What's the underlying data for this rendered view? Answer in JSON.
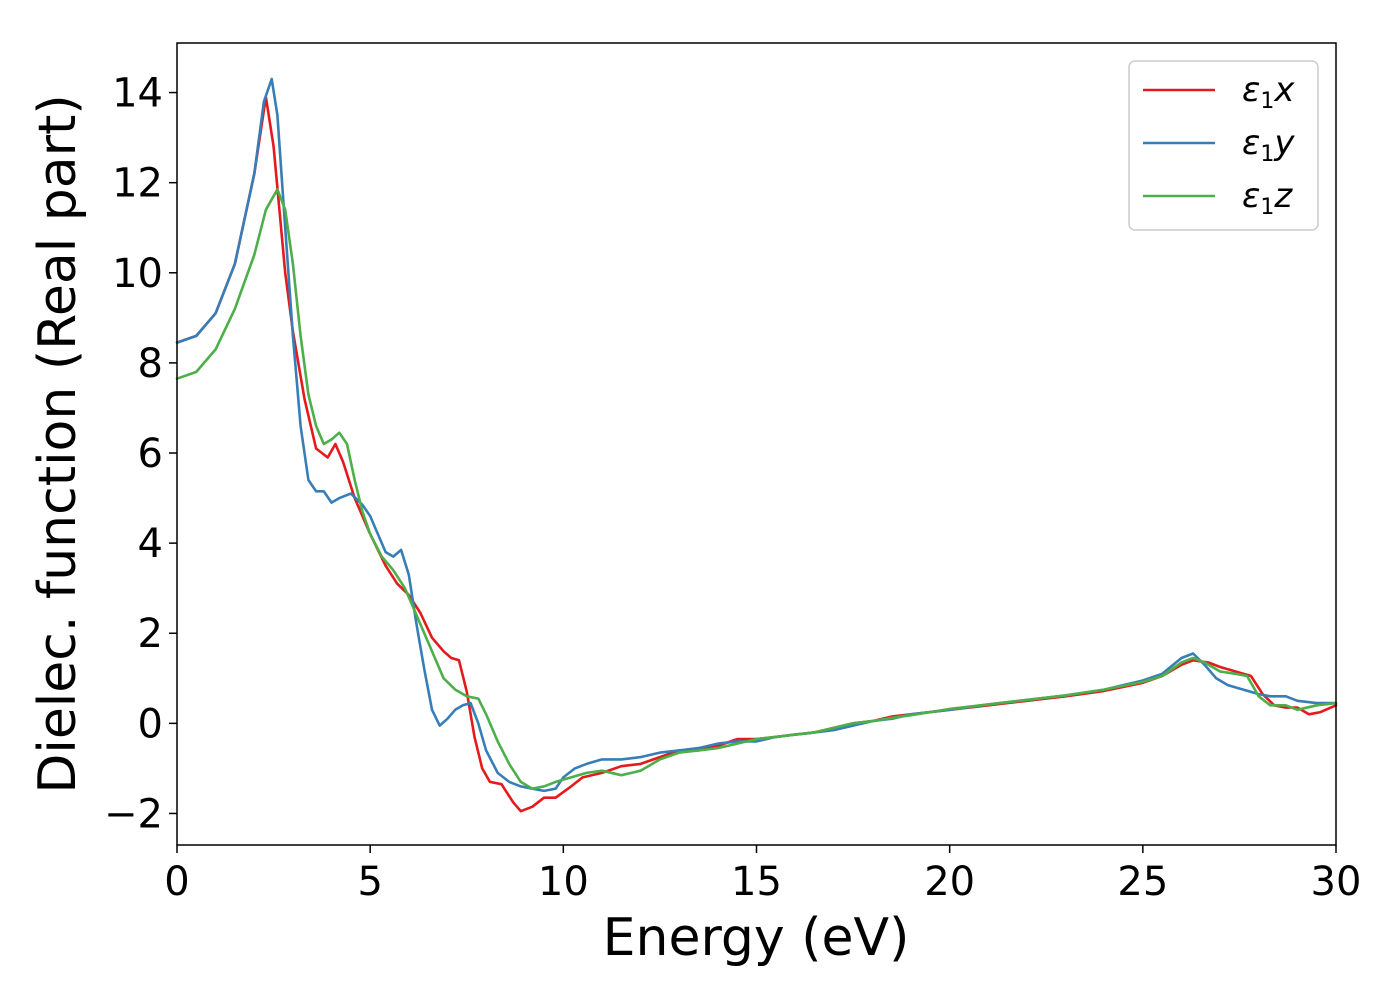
{
  "chart_data": {
    "type": "line",
    "title": "",
    "xlabel": "Energy (eV)",
    "ylabel": "Dielec. function (Real part)",
    "xlim": [
      0,
      30
    ],
    "ylim": [
      -2.7,
      15.1
    ],
    "xticks": [
      0,
      5,
      10,
      15,
      20,
      25,
      30
    ],
    "xtick_labels": [
      "0",
      "5",
      "10",
      "15",
      "20",
      "25",
      "30"
    ],
    "yticks": [
      -2,
      0,
      2,
      4,
      6,
      8,
      10,
      12,
      14
    ],
    "ytick_labels": [
      "−2",
      "0",
      "2",
      "4",
      "6",
      "8",
      "10",
      "12",
      "14"
    ],
    "grid": false,
    "legend_position": "top-right",
    "series": [
      {
        "name": "ε1x",
        "legend_main": "ε",
        "legend_sub": "1",
        "legend_var": "x",
        "color": "#e41a1c",
        "points": [
          [
            0,
            8.45
          ],
          [
            0.5,
            8.6
          ],
          [
            1.0,
            9.1
          ],
          [
            1.5,
            10.2
          ],
          [
            2.0,
            12.2
          ],
          [
            2.3,
            13.9
          ],
          [
            2.5,
            12.8
          ],
          [
            2.8,
            10.0
          ],
          [
            3.0,
            8.7
          ],
          [
            3.3,
            7.2
          ],
          [
            3.6,
            6.1
          ],
          [
            3.9,
            5.9
          ],
          [
            4.1,
            6.2
          ],
          [
            4.3,
            5.8
          ],
          [
            4.6,
            5.0
          ],
          [
            5.0,
            4.2
          ],
          [
            5.4,
            3.5
          ],
          [
            5.7,
            3.1
          ],
          [
            6.0,
            2.85
          ],
          [
            6.3,
            2.45
          ],
          [
            6.6,
            1.9
          ],
          [
            6.9,
            1.6
          ],
          [
            7.1,
            1.45
          ],
          [
            7.3,
            1.4
          ],
          [
            7.5,
            0.7
          ],
          [
            7.7,
            -0.3
          ],
          [
            7.9,
            -1.0
          ],
          [
            8.1,
            -1.3
          ],
          [
            8.4,
            -1.35
          ],
          [
            8.7,
            -1.75
          ],
          [
            8.9,
            -1.95
          ],
          [
            9.2,
            -1.85
          ],
          [
            9.5,
            -1.65
          ],
          [
            9.8,
            -1.65
          ],
          [
            10.2,
            -1.4
          ],
          [
            10.5,
            -1.2
          ],
          [
            11.0,
            -1.1
          ],
          [
            11.5,
            -0.95
          ],
          [
            12.0,
            -0.9
          ],
          [
            12.5,
            -0.75
          ],
          [
            13.0,
            -0.6
          ],
          [
            13.5,
            -0.6
          ],
          [
            14.0,
            -0.5
          ],
          [
            14.5,
            -0.35
          ],
          [
            15.0,
            -0.35
          ],
          [
            15.5,
            -0.3
          ],
          [
            16.0,
            -0.25
          ],
          [
            16.5,
            -0.2
          ],
          [
            17.0,
            -0.1
          ],
          [
            17.5,
            0.0
          ],
          [
            18.0,
            0.05
          ],
          [
            18.5,
            0.15
          ],
          [
            19.0,
            0.2
          ],
          [
            19.5,
            0.25
          ],
          [
            20.0,
            0.3
          ],
          [
            21.0,
            0.4
          ],
          [
            22.0,
            0.5
          ],
          [
            23.0,
            0.6
          ],
          [
            24.0,
            0.72
          ],
          [
            25.0,
            0.9
          ],
          [
            25.5,
            1.05
          ],
          [
            26.0,
            1.3
          ],
          [
            26.3,
            1.4
          ],
          [
            26.7,
            1.35
          ],
          [
            27.0,
            1.25
          ],
          [
            27.4,
            1.15
          ],
          [
            27.8,
            1.05
          ],
          [
            28.1,
            0.65
          ],
          [
            28.4,
            0.4
          ],
          [
            28.7,
            0.35
          ],
          [
            29.0,
            0.35
          ],
          [
            29.3,
            0.2
          ],
          [
            29.6,
            0.25
          ],
          [
            30.0,
            0.4
          ]
        ]
      },
      {
        "name": "ε1y",
        "legend_main": "ε",
        "legend_sub": "1",
        "legend_var": "y",
        "color": "#377eb8",
        "points": [
          [
            0,
            8.45
          ],
          [
            0.5,
            8.6
          ],
          [
            1.0,
            9.1
          ],
          [
            1.5,
            10.2
          ],
          [
            2.0,
            12.2
          ],
          [
            2.25,
            13.8
          ],
          [
            2.45,
            14.3
          ],
          [
            2.6,
            13.5
          ],
          [
            2.8,
            11.0
          ],
          [
            3.0,
            8.6
          ],
          [
            3.2,
            6.6
          ],
          [
            3.4,
            5.4
          ],
          [
            3.6,
            5.15
          ],
          [
            3.8,
            5.15
          ],
          [
            4.0,
            4.9
          ],
          [
            4.2,
            5.0
          ],
          [
            4.5,
            5.1
          ],
          [
            4.8,
            4.85
          ],
          [
            5.0,
            4.6
          ],
          [
            5.2,
            4.2
          ],
          [
            5.4,
            3.8
          ],
          [
            5.6,
            3.7
          ],
          [
            5.8,
            3.85
          ],
          [
            6.0,
            3.3
          ],
          [
            6.2,
            2.2
          ],
          [
            6.4,
            1.2
          ],
          [
            6.6,
            0.3
          ],
          [
            6.8,
            -0.05
          ],
          [
            7.0,
            0.1
          ],
          [
            7.2,
            0.3
          ],
          [
            7.4,
            0.4
          ],
          [
            7.6,
            0.45
          ],
          [
            7.8,
            0.0
          ],
          [
            8.0,
            -0.6
          ],
          [
            8.3,
            -1.1
          ],
          [
            8.6,
            -1.3
          ],
          [
            8.9,
            -1.4
          ],
          [
            9.2,
            -1.45
          ],
          [
            9.5,
            -1.5
          ],
          [
            9.8,
            -1.45
          ],
          [
            10.0,
            -1.2
          ],
          [
            10.3,
            -1.0
          ],
          [
            10.6,
            -0.9
          ],
          [
            11.0,
            -0.8
          ],
          [
            11.5,
            -0.8
          ],
          [
            12.0,
            -0.75
          ],
          [
            12.5,
            -0.65
          ],
          [
            13.0,
            -0.6
          ],
          [
            13.5,
            -0.55
          ],
          [
            14.0,
            -0.45
          ],
          [
            14.5,
            -0.4
          ],
          [
            15.0,
            -0.4
          ],
          [
            15.5,
            -0.3
          ],
          [
            16.0,
            -0.25
          ],
          [
            16.5,
            -0.2
          ],
          [
            17.0,
            -0.15
          ],
          [
            17.5,
            -0.05
          ],
          [
            18.0,
            0.05
          ],
          [
            18.5,
            0.1
          ],
          [
            19.0,
            0.2
          ],
          [
            19.5,
            0.25
          ],
          [
            20.0,
            0.3
          ],
          [
            21.0,
            0.42
          ],
          [
            22.0,
            0.52
          ],
          [
            23.0,
            0.62
          ],
          [
            24.0,
            0.75
          ],
          [
            25.0,
            0.95
          ],
          [
            25.5,
            1.1
          ],
          [
            26.0,
            1.45
          ],
          [
            26.3,
            1.55
          ],
          [
            26.6,
            1.3
          ],
          [
            26.9,
            1.0
          ],
          [
            27.2,
            0.85
          ],
          [
            27.6,
            0.75
          ],
          [
            28.0,
            0.65
          ],
          [
            28.3,
            0.6
          ],
          [
            28.7,
            0.6
          ],
          [
            29.0,
            0.5
          ],
          [
            29.5,
            0.45
          ],
          [
            30.0,
            0.45
          ]
        ]
      },
      {
        "name": "ε1z",
        "legend_main": "ε",
        "legend_sub": "1",
        "legend_var": "z",
        "color": "#4daf4a",
        "points": [
          [
            0,
            7.65
          ],
          [
            0.5,
            7.8
          ],
          [
            1.0,
            8.3
          ],
          [
            1.5,
            9.2
          ],
          [
            2.0,
            10.4
          ],
          [
            2.3,
            11.4
          ],
          [
            2.6,
            11.85
          ],
          [
            2.8,
            11.4
          ],
          [
            3.0,
            10.2
          ],
          [
            3.2,
            8.6
          ],
          [
            3.4,
            7.3
          ],
          [
            3.6,
            6.6
          ],
          [
            3.8,
            6.2
          ],
          [
            4.0,
            6.3
          ],
          [
            4.2,
            6.45
          ],
          [
            4.4,
            6.2
          ],
          [
            4.6,
            5.4
          ],
          [
            4.8,
            4.7
          ],
          [
            5.0,
            4.2
          ],
          [
            5.3,
            3.7
          ],
          [
            5.6,
            3.4
          ],
          [
            5.9,
            3.0
          ],
          [
            6.1,
            2.6
          ],
          [
            6.3,
            2.2
          ],
          [
            6.6,
            1.6
          ],
          [
            6.9,
            1.0
          ],
          [
            7.2,
            0.75
          ],
          [
            7.5,
            0.6
          ],
          [
            7.8,
            0.55
          ],
          [
            8.0,
            0.2
          ],
          [
            8.3,
            -0.4
          ],
          [
            8.6,
            -0.9
          ],
          [
            8.9,
            -1.3
          ],
          [
            9.2,
            -1.45
          ],
          [
            9.5,
            -1.4
          ],
          [
            9.8,
            -1.3
          ],
          [
            10.2,
            -1.2
          ],
          [
            10.6,
            -1.1
          ],
          [
            11.0,
            -1.05
          ],
          [
            11.5,
            -1.15
          ],
          [
            12.0,
            -1.05
          ],
          [
            12.5,
            -0.8
          ],
          [
            13.0,
            -0.65
          ],
          [
            13.5,
            -0.6
          ],
          [
            14.0,
            -0.55
          ],
          [
            14.5,
            -0.45
          ],
          [
            15.0,
            -0.35
          ],
          [
            15.5,
            -0.3
          ],
          [
            16.0,
            -0.25
          ],
          [
            16.5,
            -0.2
          ],
          [
            17.0,
            -0.1
          ],
          [
            17.5,
            0.0
          ],
          [
            18.0,
            0.05
          ],
          [
            18.5,
            0.12
          ],
          [
            19.0,
            0.18
          ],
          [
            19.5,
            0.25
          ],
          [
            20.0,
            0.32
          ],
          [
            21.0,
            0.42
          ],
          [
            22.0,
            0.52
          ],
          [
            23.0,
            0.62
          ],
          [
            24.0,
            0.75
          ],
          [
            25.0,
            0.92
          ],
          [
            25.5,
            1.05
          ],
          [
            26.0,
            1.35
          ],
          [
            26.3,
            1.45
          ],
          [
            26.6,
            1.35
          ],
          [
            27.0,
            1.15
          ],
          [
            27.4,
            1.1
          ],
          [
            27.7,
            1.05
          ],
          [
            28.0,
            0.6
          ],
          [
            28.3,
            0.4
          ],
          [
            28.7,
            0.4
          ],
          [
            29.0,
            0.3
          ],
          [
            29.5,
            0.4
          ],
          [
            30.0,
            0.45
          ]
        ]
      }
    ]
  }
}
